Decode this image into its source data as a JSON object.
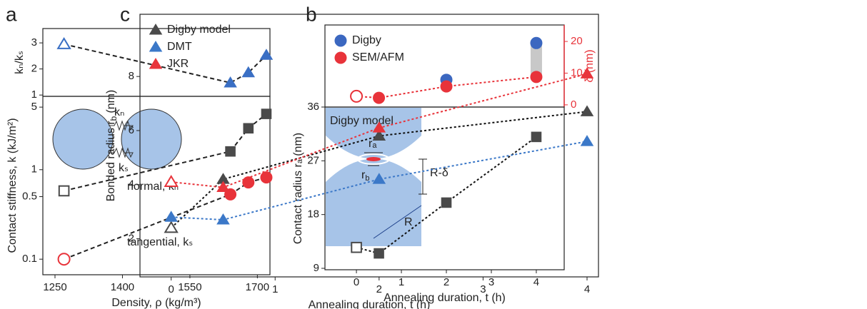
{
  "chart_data": [
    {
      "type": "scatter",
      "panel": "a",
      "ylabel": "kₙ/kₛ",
      "xlim": [
        1223,
        1728
      ],
      "ylim": [
        0.95,
        3.55
      ],
      "yticks": [
        1,
        2,
        3
      ],
      "series": [
        {
          "color": "#3a6fc4",
          "marker": "triangle",
          "filled": [
            false,
            true,
            true,
            true
          ],
          "line_color": "#222222",
          "line_style": "dashed",
          "x": [
            1270,
            1640,
            1680,
            1720
          ],
          "values": [
            2.95,
            1.47,
            1.86,
            2.53
          ]
        }
      ]
    },
    {
      "type": "scatter",
      "xlabel": "Density, ρ (kg/m³)",
      "ylabel": "Contact stiffness, k (kJ/m²)",
      "yscale": "log",
      "xlim": [
        1223,
        1728
      ],
      "ylim": [
        0.067,
        6.6
      ],
      "xticks": [
        1250,
        1400,
        1550,
        1700
      ],
      "yticks": [
        0.1,
        0.5,
        1,
        5
      ],
      "annotations": [
        "normal, kₙ",
        "tangential, kₛ"
      ],
      "inset_labels": [
        "kₙ",
        "kₛ"
      ],
      "series": [
        {
          "color": "#4a4a4a",
          "marker": "square",
          "filled": [
            false,
            true,
            true,
            true
          ],
          "line_color": "#222222",
          "line_style": "dashed",
          "x": [
            1270,
            1640,
            1680,
            1720
          ],
          "values": [
            0.58,
            1.6,
            2.9,
            4.2
          ]
        },
        {
          "color": "#e8333a",
          "marker": "circle",
          "filled": [
            false,
            true,
            true,
            true
          ],
          "line_color": "#222222",
          "line_style": "dashed",
          "x": [
            1270,
            1640,
            1680,
            1720
          ],
          "values": [
            0.1,
            0.53,
            0.72,
            0.82
          ]
        }
      ]
    },
    {
      "type": "scatter",
      "panel": "b",
      "y2label": "δ (nm)",
      "y2color": "#e8333a",
      "xlim": [
        -0.7,
        4.62
      ],
      "y2lim": [
        -0.7,
        25.2
      ],
      "y2ticks": [
        0,
        10,
        20
      ],
      "legend": "upper left",
      "range_bar_color": "#c8c8c8",
      "series": [
        {
          "name": "Digby",
          "axis": "y2",
          "color": "#3b67c0",
          "marker": "circle",
          "filled": [
            true,
            true
          ],
          "x": [
            2,
            4
          ],
          "values": [
            7.9,
            19.5
          ]
        },
        {
          "name": "SEM/AFM",
          "axis": "y2",
          "color": "#e8333a",
          "marker": "circle",
          "filled": [
            false,
            true,
            true,
            true
          ],
          "line_color": "#e8333a",
          "line_style": "dotted",
          "x": [
            0,
            0.5,
            2,
            4
          ],
          "values": [
            2.7,
            2.2,
            5.8,
            8.8
          ]
        }
      ]
    },
    {
      "type": "scatter",
      "xlabel": "Annealing duration, t (h)",
      "ylabel": "Contact radius rₐ (nm)",
      "xlim": [
        -0.7,
        4.62
      ],
      "ylim": [
        8.76,
        36
      ],
      "xticks": [
        0,
        1,
        2,
        3,
        4
      ],
      "yticks": [
        9,
        18,
        27,
        36
      ],
      "inset_labels": {
        "title": "Digby model",
        "ra": "rₐ",
        "rb": "r",
        "rb_sub": "b",
        "height": "R-δ",
        "radius": "R"
      },
      "series": [
        {
          "color": "#4a4a4a",
          "marker": "square",
          "filled": [
            false,
            true,
            true,
            true
          ],
          "line_color": "#111111",
          "line_style": "dotted",
          "x": [
            0,
            0.5,
            2,
            4
          ],
          "values": [
            12.5,
            11.5,
            20,
            31
          ]
        }
      ]
    },
    {
      "type": "scatter",
      "panel": "c",
      "xlabel": "Annealing duration, t (h)",
      "ylabel": "Bonded radius r",
      "ylabel_sub": "b",
      "ylabel_unit": "(nm)",
      "xlim": [
        -0.3,
        4.11
      ],
      "ylim": [
        0.59,
        10.3
      ],
      "xticks": [
        0,
        1,
        2,
        3,
        4
      ],
      "yticks": [
        2,
        4,
        6,
        8
      ],
      "legend": "upper left",
      "series": [
        {
          "name": "Digby model",
          "color": "#4a4a4a",
          "marker": "triangle",
          "filled": [
            false,
            true,
            true,
            true
          ],
          "line_color": "#111111",
          "line_style": "dotted",
          "x": [
            0,
            0.5,
            2,
            4
          ],
          "values": [
            2.4,
            4.2,
            5.8,
            6.7
          ]
        },
        {
          "name": "DMT",
          "color": "#3b78c8",
          "marker": "triangle",
          "filled": [
            true,
            true,
            true,
            true
          ],
          "line_color": "#3b78c8",
          "line_style": "dotted",
          "x": [
            0,
            0.5,
            2,
            4
          ],
          "values": [
            2.8,
            2.7,
            4.2,
            5.6
          ]
        },
        {
          "name": "JKR",
          "color": "#e8343b",
          "marker": "triangle",
          "filled": [
            false,
            true,
            true,
            true
          ],
          "line_color": "#e8343b",
          "line_style": "dotted",
          "x": [
            0,
            0.5,
            2,
            4
          ],
          "values": [
            4.1,
            3.9,
            6.1,
            8.1
          ]
        }
      ]
    }
  ]
}
